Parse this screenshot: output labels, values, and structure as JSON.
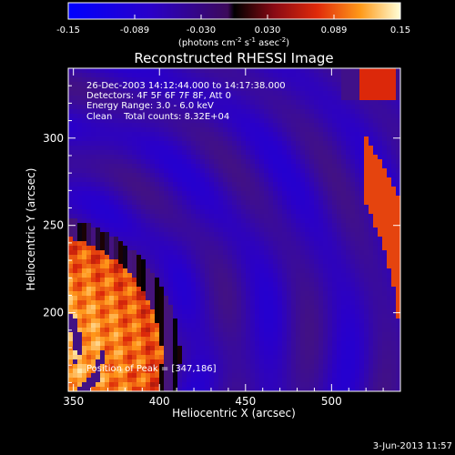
{
  "chart_data": {
    "type": "heatmap",
    "title": "Reconstructed RHESSI Image",
    "xlabel": "Heliocentric X (arcsec)",
    "ylabel": "Heliocentric Y (arcsec)",
    "xlim": [
      347,
      540
    ],
    "ylim": [
      155,
      340
    ],
    "x_ticks": [
      350,
      400,
      450,
      500
    ],
    "y_ticks": [
      200,
      250,
      300
    ],
    "colorbar": {
      "ticks": [
        "-0.15",
        "-0.089",
        "-0.030",
        "0.030",
        "0.089",
        "0.15"
      ],
      "range": [
        -0.15,
        0.15
      ],
      "unit_parts": [
        "(photons cm",
        "-2",
        " s",
        "-1",
        " asec",
        "-2",
        ")"
      ]
    },
    "info_lines": [
      "26-Dec-2003 14:12:44.000 to 14:17:38.000",
      "Detectors: 4F 5F 6F 7F 8F, Att 0",
      "Energy Range: 3.0 - 6.0 keV",
      "Clean    Total counts: 8.32E+04"
    ],
    "peak_label": "Position of Peak = [347,186]",
    "peak": [
      347,
      186
    ],
    "timestamp": "3-Jun-2013 11:57"
  }
}
